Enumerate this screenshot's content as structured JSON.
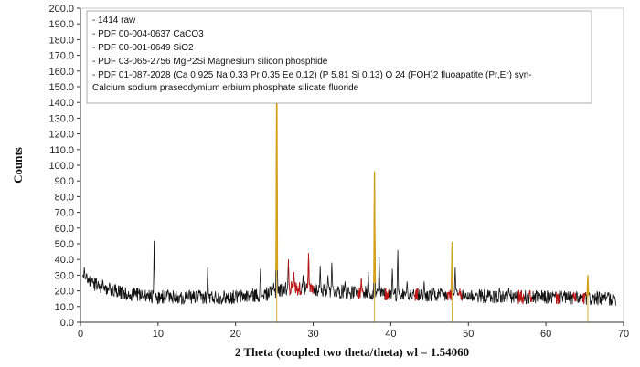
{
  "chart_data": {
    "type": "line",
    "xlabel": "2 Theta (coupled two theta/theta) wl = 1.54060",
    "ylabel": "Counts",
    "xlim": [
      0,
      70
    ],
    "ylim": [
      0,
      200
    ],
    "x_ticks": [
      0,
      10,
      20,
      30,
      40,
      50,
      60,
      70
    ],
    "y_ticks": [
      0,
      10,
      20,
      30,
      40,
      50,
      60,
      70,
      80,
      90,
      100,
      110,
      120,
      130,
      140,
      150,
      160,
      170,
      180,
      190,
      200
    ],
    "x_tick_labels": [
      "0",
      "10",
      "20",
      "30",
      "40",
      "50",
      "60",
      "70"
    ],
    "y_tick_labels": [
      "0.0",
      "10.0",
      "20.0",
      "30.0",
      "40.0",
      "50.0",
      "60.0",
      "70.0",
      "80.0",
      "90.0",
      "100.0",
      "110.0",
      "120.0",
      "130.0",
      "140.0",
      "150.0",
      "160.0",
      "170.0",
      "180.0",
      "190.0",
      "200.0"
    ],
    "grid": false,
    "legend_position": "top",
    "legend": [
      "- 1414 raw",
      "- PDF 00-004-0637  CaCO3",
      "- PDF 00-001-0649  SiO2",
      "- PDF 03-065-2756  MgP2Si Magnesium silicon phosphide",
      "- PDF 01-087-2028   (Ca 0.925  Na 0.33  Pr 0.35  Ee 0.12)  (P 5.81  Si 0.13)  O 24  (FOH)2  fluoapatite (Pr,Er)  syn-",
      "Calcium  sodium praseodymium erbium phosphate silicate fluoride"
    ],
    "series": [
      {
        "name": "1414 raw",
        "color": "#111111",
        "baseline": [
          [
            0.3,
            28
          ],
          [
            2,
            24
          ],
          [
            5,
            19
          ],
          [
            10,
            16
          ],
          [
            20,
            16
          ],
          [
            24,
            18
          ],
          [
            27,
            22
          ],
          [
            30,
            21
          ],
          [
            35,
            19
          ],
          [
            40,
            18
          ],
          [
            45,
            17
          ],
          [
            50,
            17
          ],
          [
            55,
            16
          ],
          [
            60,
            16
          ],
          [
            65,
            15
          ],
          [
            69,
            15
          ]
        ],
        "noise": 4.5,
        "peaks": [
          [
            0.5,
            35
          ],
          [
            9.5,
            52
          ],
          [
            16.4,
            35
          ],
          [
            23.2,
            34
          ],
          [
            24.9,
            25
          ],
          [
            25.3,
            176
          ],
          [
            26.8,
            40
          ],
          [
            27.5,
            32
          ],
          [
            28.7,
            30
          ],
          [
            29.4,
            44
          ],
          [
            30.9,
            36
          ],
          [
            31.9,
            30
          ],
          [
            32.4,
            38
          ],
          [
            34.1,
            26
          ],
          [
            36.2,
            28
          ],
          [
            37.1,
            32
          ],
          [
            37.9,
            96
          ],
          [
            38.5,
            42
          ],
          [
            40.2,
            34
          ],
          [
            40.9,
            46
          ],
          [
            42.1,
            26
          ],
          [
            44.3,
            26
          ],
          [
            45.5,
            22
          ],
          [
            47.9,
            51
          ],
          [
            48.3,
            35
          ],
          [
            54.0,
            22
          ],
          [
            55.2,
            22
          ],
          [
            62.0,
            20
          ],
          [
            65.4,
            30
          ],
          [
            68.0,
            19
          ]
        ]
      },
      {
        "name": "PDF 00-004-0637  CaCO3",
        "color": "#c41414",
        "segments": [
          [
            26.8,
            28.5
          ],
          [
            29.2,
            30.1
          ],
          [
            35.8,
            36.5
          ],
          [
            39.2,
            39.8
          ],
          [
            43.0,
            43.5
          ],
          [
            47.2,
            47.8
          ],
          [
            48.6,
            49.2
          ],
          [
            56.4,
            57.2
          ],
          [
            57.8,
            58.2
          ],
          [
            61.2,
            61.7
          ],
          [
            63.4,
            63.9
          ],
          [
            64.7,
            65.1
          ]
        ]
      },
      {
        "name": "PDF 00-001-0649  SiO2",
        "color": "#d4a017",
        "sticks": [
          [
            25.3,
            176
          ],
          [
            37.9,
            96
          ],
          [
            47.9,
            51
          ],
          [
            65.4,
            30
          ]
        ]
      }
    ]
  }
}
